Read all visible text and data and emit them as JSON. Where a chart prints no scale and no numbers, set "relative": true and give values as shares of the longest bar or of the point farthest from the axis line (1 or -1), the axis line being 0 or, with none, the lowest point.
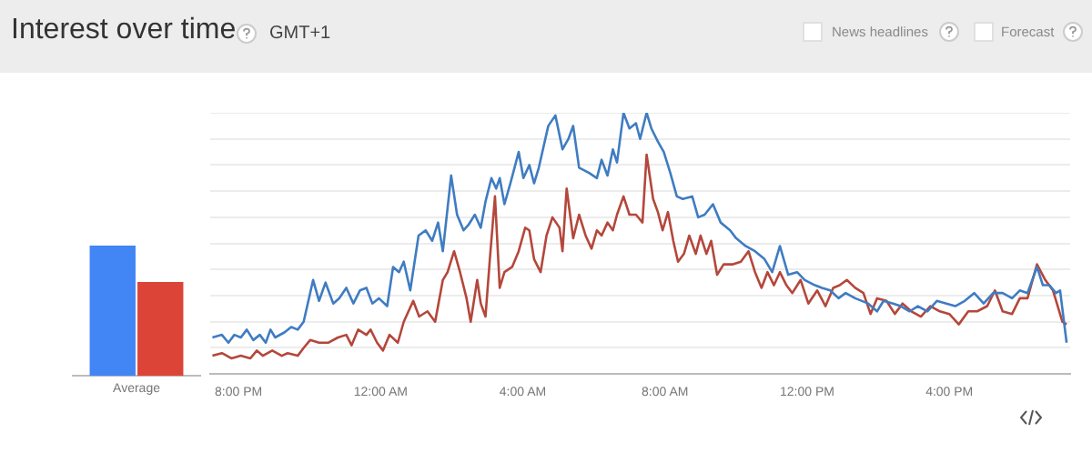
{
  "chart_data": [
    {
      "type": "other",
      "title": "Interest over time",
      "subtitle": "GMT+1",
      "annotations": [
        "News headlines",
        "Forecast"
      ]
    },
    {
      "type": "bar",
      "categories": [
        "Average"
      ],
      "relative": true,
      "series": [
        {
          "color": "#4285f4",
          "values": [
            1
          ]
        },
        {
          "color": "#db4437",
          "values": [
            0.72
          ]
        }
      ]
    },
    {
      "type": "line",
      "relative": true,
      "grid": "y",
      "xlim": [
        "2000-01-01T19:12",
        "2000-01-02T19:24"
      ],
      "xticks": [
        {
          "value": "2000-01-01T20:00",
          "label": "8:00 PM"
        },
        {
          "value": "2000-01-02T00:00",
          "label": "12:00 AM"
        },
        {
          "value": "2000-01-02T04:00",
          "label": "4:00 AM"
        },
        {
          "value": "2000-01-02T08:00",
          "label": "8:00 AM"
        },
        {
          "value": "2000-01-02T12:00",
          "label": "12:00 PM"
        },
        {
          "value": "2000-01-02T16:00",
          "label": "4:00 PM"
        }
      ],
      "series": [
        {
          "color": "#3f7cc2",
          "x": [
            "2000-01-01T19:16",
            "2000-01-01T19:32",
            "2000-01-01T19:43",
            "2000-01-01T19:53",
            "2000-01-01T20:04",
            "2000-01-01T20:14",
            "2000-01-01T20:25",
            "2000-01-01T20:36",
            "2000-01-01T20:46",
            "2000-01-01T20:54",
            "2000-01-01T21:02",
            "2000-01-01T21:18",
            "2000-01-01T21:29",
            "2000-01-01T21:40",
            "2000-01-01T21:50",
            "2000-01-01T22:06",
            "2000-01-01T22:16",
            "2000-01-01T22:27",
            "2000-01-01T22:40",
            "2000-01-01T22:50",
            "2000-01-01T23:02",
            "2000-01-01T23:14",
            "2000-01-01T23:25",
            "2000-01-01T23:36",
            "2000-01-01T23:46",
            "2000-01-01T23:57",
            "2000-01-02T00:11",
            "2000-01-02T00:21",
            "2000-01-02T00:31",
            "2000-01-02T00:39",
            "2000-01-02T00:50",
            "2000-01-02T01:04",
            "2000-01-02T01:16",
            "2000-01-02T01:27",
            "2000-01-02T01:37",
            "2000-01-02T01:45",
            "2000-01-02T01:59",
            "2000-01-02T02:09",
            "2000-01-02T02:20",
            "2000-01-02T02:28",
            "2000-01-02T02:39",
            "2000-01-02T02:49",
            "2000-01-02T02:57",
            "2000-01-02T03:07",
            "2000-01-02T03:15",
            "2000-01-02T03:21",
            "2000-01-02T03:29",
            "2000-01-02T03:39",
            "2000-01-02T03:53",
            "2000-01-02T04:01",
            "2000-01-02T04:11",
            "2000-01-02T04:19",
            "2000-01-02T04:27",
            "2000-01-02T04:43",
            "2000-01-02T04:55",
            "2000-01-02T05:07",
            "2000-01-02T05:17",
            "2000-01-02T05:25",
            "2000-01-02T05:35",
            "2000-01-02T05:52",
            "2000-01-02T06:05",
            "2000-01-02T06:13",
            "2000-01-02T06:23",
            "2000-01-02T06:32",
            "2000-01-02T06:39",
            "2000-01-02T06:50",
            "2000-01-02T07:00",
            "2000-01-02T07:11",
            "2000-01-02T07:18",
            "2000-01-02T07:29",
            "2000-01-02T07:37",
            "2000-01-02T07:48",
            "2000-01-02T07:58",
            "2000-01-02T08:09",
            "2000-01-02T08:20",
            "2000-01-02T08:30",
            "2000-01-02T08:46",
            "2000-01-02T08:56",
            "2000-01-02T09:07",
            "2000-01-02T09:21",
            "2000-01-02T09:34",
            "2000-01-02T09:50",
            "2000-01-02T10:00",
            "2000-01-02T10:16",
            "2000-01-02T10:32",
            "2000-01-02T10:48",
            "2000-01-02T11:01",
            "2000-01-02T11:14",
            "2000-01-02T11:28",
            "2000-01-02T11:43",
            "2000-01-02T11:56",
            "2000-01-02T12:13",
            "2000-01-02T12:25",
            "2000-01-02T12:39",
            "2000-01-02T12:53",
            "2000-01-02T13:05",
            "2000-01-02T13:21",
            "2000-01-02T13:43",
            "2000-01-02T13:58",
            "2000-01-02T14:09",
            "2000-01-02T14:25",
            "2000-01-02T14:38",
            "2000-01-02T14:53",
            "2000-01-02T15:07",
            "2000-01-02T15:23",
            "2000-01-02T15:39",
            "2000-01-02T15:55",
            "2000-01-02T16:10",
            "2000-01-02T16:26",
            "2000-01-02T16:42",
            "2000-01-02T16:58",
            "2000-01-02T17:14",
            "2000-01-02T17:30",
            "2000-01-02T17:46",
            "2000-01-02T17:59",
            "2000-01-02T18:12",
            "2000-01-02T18:28",
            "2000-01-02T18:38",
            "2000-01-02T18:49",
            "2000-01-02T19:00",
            "2000-01-02T19:07",
            "2000-01-02T19:18"
          ],
          "values": [
            0.14,
            0.15,
            0.12,
            0.15,
            0.14,
            0.17,
            0.13,
            0.15,
            0.12,
            0.17,
            0.14,
            0.16,
            0.18,
            0.17,
            0.2,
            0.36,
            0.28,
            0.35,
            0.27,
            0.29,
            0.33,
            0.27,
            0.32,
            0.33,
            0.27,
            0.29,
            0.26,
            0.41,
            0.39,
            0.43,
            0.32,
            0.53,
            0.55,
            0.51,
            0.58,
            0.47,
            0.76,
            0.61,
            0.55,
            0.57,
            0.61,
            0.56,
            0.66,
            0.75,
            0.71,
            0.75,
            0.65,
            0.73,
            0.85,
            0.75,
            0.8,
            0.73,
            0.79,
            0.95,
            0.99,
            0.86,
            0.9,
            0.95,
            0.79,
            0.77,
            0.75,
            0.82,
            0.76,
            0.86,
            0.81,
            1,
            0.94,
            0.96,
            0.9,
            1,
            0.94,
            0.89,
            0.85,
            0.77,
            0.68,
            0.67,
            0.68,
            0.6,
            0.61,
            0.65,
            0.58,
            0.55,
            0.52,
            0.49,
            0.47,
            0.44,
            0.39,
            0.49,
            0.38,
            0.39,
            0.36,
            0.34,
            0.33,
            0.32,
            0.29,
            0.31,
            0.29,
            0.27,
            0.24,
            0.28,
            0.27,
            0.26,
            0.24,
            0.26,
            0.24,
            0.28,
            0.27,
            0.26,
            0.28,
            0.31,
            0.27,
            0.31,
            0.31,
            0.29,
            0.32,
            0.31,
            0.41,
            0.34,
            0.34,
            0.31,
            0.32,
            0.12
          ]
        },
        {
          "color": "#b4473b",
          "x": [
            "2000-01-01T19:16",
            "2000-01-01T19:32",
            "2000-01-01T19:48",
            "2000-01-01T20:04",
            "2000-01-01T20:20",
            "2000-01-01T20:31",
            "2000-01-01T20:41",
            "2000-01-01T20:57",
            "2000-01-01T21:13",
            "2000-01-01T21:23",
            "2000-01-01T21:40",
            "2000-01-01T21:50",
            "2000-01-01T22:01",
            "2000-01-01T22:16",
            "2000-01-01T22:32",
            "2000-01-01T22:48",
            "2000-01-01T23:02",
            "2000-01-01T23:11",
            "2000-01-01T23:22",
            "2000-01-01T23:36",
            "2000-01-01T23:43",
            "2000-01-01T23:54",
            "2000-01-02T00:04",
            "2000-01-02T00:15",
            "2000-01-02T00:29",
            "2000-01-02T00:39",
            "2000-01-02T00:55",
            "2000-01-02T01:05",
            "2000-01-02T01:19",
            "2000-01-02T01:32",
            "2000-01-02T01:45",
            "2000-01-02T01:53",
            "2000-01-02T02:04",
            "2000-01-02T02:14",
            "2000-01-02T02:25",
            "2000-01-02T02:32",
            "2000-01-02T02:43",
            "2000-01-02T02:49",
            "2000-01-02T02:57",
            "2000-01-02T03:04",
            "2000-01-02T03:13",
            "2000-01-02T03:21",
            "2000-01-02T03:29",
            "2000-01-02T03:42",
            "2000-01-02T03:53",
            "2000-01-02T04:04",
            "2000-01-02T04:11",
            "2000-01-02T04:19",
            "2000-01-02T04:30",
            "2000-01-02T04:40",
            "2000-01-02T04:50",
            "2000-01-02T05:02",
            "2000-01-02T05:07",
            "2000-01-02T05:14",
            "2000-01-02T05:25",
            "2000-01-02T05:35",
            "2000-01-02T05:46",
            "2000-01-02T05:56",
            "2000-01-02T06:05",
            "2000-01-02T06:13",
            "2000-01-02T06:23",
            "2000-01-02T06:32",
            "2000-01-02T06:39",
            "2000-01-02T06:50",
            "2000-01-02T07:00",
            "2000-01-02T07:11",
            "2000-01-02T07:22",
            "2000-01-02T07:29",
            "2000-01-02T07:40",
            "2000-01-02T07:48",
            "2000-01-02T07:56",
            "2000-01-02T08:05",
            "2000-01-02T08:14",
            "2000-01-02T08:22",
            "2000-01-02T08:32",
            "2000-01-02T08:41",
            "2000-01-02T08:52",
            "2000-01-02T09:00",
            "2000-01-02T09:10",
            "2000-01-02T09:18",
            "2000-01-02T09:28",
            "2000-01-02T09:39",
            "2000-01-02T09:55",
            "2000-01-02T10:08",
            "2000-01-02T10:21",
            "2000-01-02T10:32",
            "2000-01-02T10:43",
            "2000-01-02T10:53",
            "2000-01-02T11:04",
            "2000-01-02T11:14",
            "2000-01-02T11:25",
            "2000-01-02T11:35",
            "2000-01-02T11:49",
            "2000-01-02T12:02",
            "2000-01-02T12:17",
            "2000-01-02T12:31",
            "2000-01-02T12:44",
            "2000-01-02T12:55",
            "2000-01-02T13:07",
            "2000-01-02T13:21",
            "2000-01-02T13:35",
            "2000-01-02T13:47",
            "2000-01-02T13:58",
            "2000-01-02T14:14",
            "2000-01-02T14:28",
            "2000-01-02T14:41",
            "2000-01-02T14:56",
            "2000-01-02T15:12",
            "2000-01-02T15:28",
            "2000-01-02T15:44",
            "2000-01-02T16:00",
            "2000-01-02T16:16",
            "2000-01-02T16:32",
            "2000-01-02T16:47",
            "2000-01-02T17:04",
            "2000-01-02T17:17",
            "2000-01-02T17:30",
            "2000-01-02T17:46",
            "2000-01-02T17:59",
            "2000-01-02T18:12",
            "2000-01-02T18:28",
            "2000-01-02T18:42",
            "2000-01-02T18:55",
            "2000-01-02T19:11",
            "2000-01-02T19:18"
          ],
          "values": [
            0.07,
            0.08,
            0.06,
            0.07,
            0.06,
            0.09,
            0.07,
            0.09,
            0.07,
            0.08,
            0.07,
            0.1,
            0.13,
            0.12,
            0.12,
            0.14,
            0.15,
            0.11,
            0.17,
            0.15,
            0.17,
            0.12,
            0.09,
            0.15,
            0.12,
            0.2,
            0.28,
            0.22,
            0.24,
            0.2,
            0.36,
            0.39,
            0.47,
            0.39,
            0.29,
            0.2,
            0.36,
            0.27,
            0.22,
            0.43,
            0.68,
            0.33,
            0.39,
            0.41,
            0.47,
            0.56,
            0.55,
            0.44,
            0.39,
            0.53,
            0.6,
            0.56,
            0.47,
            0.71,
            0.52,
            0.61,
            0.53,
            0.48,
            0.55,
            0.53,
            0.58,
            0.55,
            0.61,
            0.68,
            0.61,
            0.61,
            0.58,
            0.84,
            0.67,
            0.62,
            0.55,
            0.62,
            0.51,
            0.43,
            0.46,
            0.53,
            0.46,
            0.53,
            0.46,
            0.51,
            0.38,
            0.42,
            0.42,
            0.43,
            0.47,
            0.39,
            0.33,
            0.39,
            0.34,
            0.39,
            0.34,
            0.31,
            0.36,
            0.27,
            0.32,
            0.26,
            0.33,
            0.34,
            0.36,
            0.33,
            0.31,
            0.23,
            0.29,
            0.28,
            0.23,
            0.27,
            0.24,
            0.22,
            0.26,
            0.24,
            0.23,
            0.19,
            0.24,
            0.24,
            0.26,
            0.32,
            0.24,
            0.23,
            0.29,
            0.29,
            0.42,
            0.36,
            0.32,
            0.2,
            0.19
          ]
        }
      ]
    }
  ]
}
